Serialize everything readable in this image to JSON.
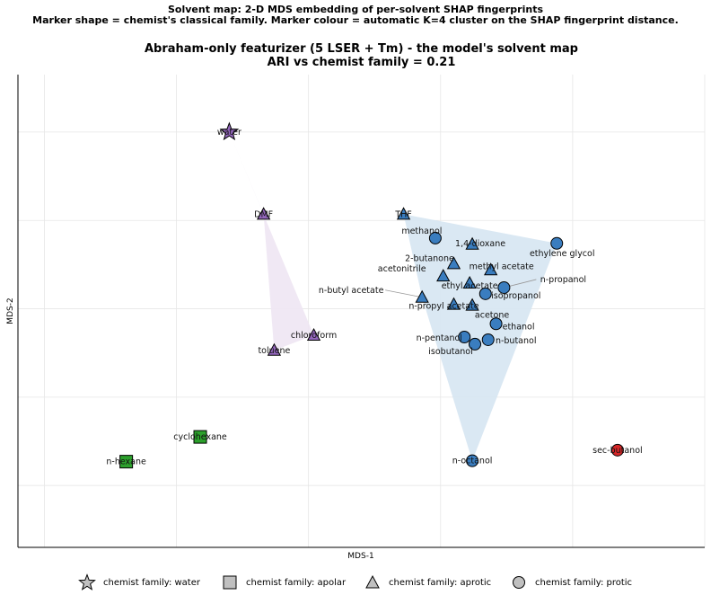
{
  "suptitle_line1": "Solvent map: 2-D MDS embedding of per-solvent SHAP fingerprints",
  "suptitle_line2": "Marker shape = chemist's classical family.   Marker colour = automatic K=4 cluster on the SHAP fingerprint distance.",
  "colors": {
    "blue": "#3a7dbf",
    "purple": "#9467bd",
    "green": "#2ca02c",
    "red": "#d62728",
    "blue_hull": "#d6e6f2",
    "purple_hull": "#eee5f3",
    "legend_gray": "#c0c0c0"
  },
  "chart_data": {
    "type": "scatter",
    "title_line1": "Abraham-only featurizer  (5 LSER + Tm)  -  the model's solvent map",
    "title_line2": "ARI vs chemist family = 0.21",
    "xlabel": "MDS-1",
    "ylabel": "MDS-2",
    "xlim": [
      -0.1,
      2.5
    ],
    "ylim": [
      -2.7,
      2.65
    ],
    "grid": true,
    "legend_position": "bottom",
    "legend": [
      {
        "label": "chemist family: water",
        "shape": "star"
      },
      {
        "label": "chemist family: apolar",
        "shape": "square"
      },
      {
        "label": "chemist family: aprotic",
        "shape": "triangle"
      },
      {
        "label": "chemist family: protic",
        "shape": "circle"
      }
    ],
    "hulls": [
      {
        "cluster": "purple",
        "members": [
          "water",
          "DMF",
          "toluene",
          "chloroform"
        ]
      },
      {
        "cluster": "blue",
        "members": [
          "THF",
          "ethylene glycol",
          "n-octanol",
          "n-butyl acetate"
        ]
      }
    ],
    "points": [
      {
        "label": "water",
        "x": 0.7,
        "y": 2.0,
        "shape": "star",
        "cluster": "purple"
      },
      {
        "label": "DMF",
        "x": 0.83,
        "y": 1.07,
        "shape": "triangle",
        "cluster": "purple"
      },
      {
        "label": "chloroform",
        "x": 1.02,
        "y": -0.3,
        "shape": "triangle",
        "cluster": "purple"
      },
      {
        "label": "toluene",
        "x": 0.87,
        "y": -0.47,
        "shape": "triangle",
        "cluster": "purple"
      },
      {
        "label": "cyclohexane",
        "x": 0.59,
        "y": -1.45,
        "shape": "square",
        "cluster": "green"
      },
      {
        "label": "n-hexane",
        "x": 0.31,
        "y": -1.73,
        "shape": "square",
        "cluster": "green"
      },
      {
        "label": "sec-butanol",
        "x": 2.17,
        "y": -1.6,
        "shape": "circle",
        "cluster": "red"
      },
      {
        "label": "THF",
        "x": 1.36,
        "y": 1.07,
        "shape": "triangle",
        "cluster": "blue"
      },
      {
        "label": "methanol",
        "x": 1.48,
        "y": 0.8,
        "shape": "circle",
        "cluster": "blue"
      },
      {
        "label": "1,4-dioxane",
        "x": 1.62,
        "y": 0.73,
        "shape": "triangle",
        "cluster": "blue"
      },
      {
        "label": "ethylene glycol",
        "x": 1.94,
        "y": 0.74,
        "shape": "circle",
        "cluster": "blue"
      },
      {
        "label": "2-butanone",
        "x": 1.55,
        "y": 0.51,
        "shape": "triangle",
        "cluster": "blue"
      },
      {
        "label": "methyl acetate",
        "x": 1.69,
        "y": 0.44,
        "shape": "triangle",
        "cluster": "blue"
      },
      {
        "label": "acetonitrile",
        "x": 1.51,
        "y": 0.37,
        "shape": "triangle",
        "cluster": "blue"
      },
      {
        "label": "ethyl acetate",
        "x": 1.61,
        "y": 0.29,
        "shape": "triangle",
        "cluster": "blue"
      },
      {
        "label": "n-propanol",
        "x": 1.74,
        "y": 0.24,
        "shape": "circle",
        "cluster": "blue"
      },
      {
        "label": "isopropanol",
        "x": 1.67,
        "y": 0.17,
        "shape": "circle",
        "cluster": "blue"
      },
      {
        "label": "n-butyl acetate",
        "x": 1.43,
        "y": 0.13,
        "shape": "triangle",
        "cluster": "blue"
      },
      {
        "label": "n-propyl acetate",
        "x": 1.55,
        "y": 0.05,
        "shape": "triangle",
        "cluster": "blue"
      },
      {
        "label": "acetone",
        "x": 1.62,
        "y": 0.04,
        "shape": "triangle",
        "cluster": "blue"
      },
      {
        "label": "ethanol",
        "x": 1.71,
        "y": -0.17,
        "shape": "circle",
        "cluster": "blue"
      },
      {
        "label": "n-pentanol",
        "x": 1.59,
        "y": -0.32,
        "shape": "circle",
        "cluster": "blue"
      },
      {
        "label": "n-butanol",
        "x": 1.68,
        "y": -0.35,
        "shape": "circle",
        "cluster": "blue"
      },
      {
        "label": "isobutanol",
        "x": 1.63,
        "y": -0.4,
        "shape": "circle",
        "cluster": "blue"
      },
      {
        "label": "n-octanol",
        "x": 1.62,
        "y": -1.72,
        "shape": "circle",
        "cluster": "blue"
      }
    ]
  }
}
